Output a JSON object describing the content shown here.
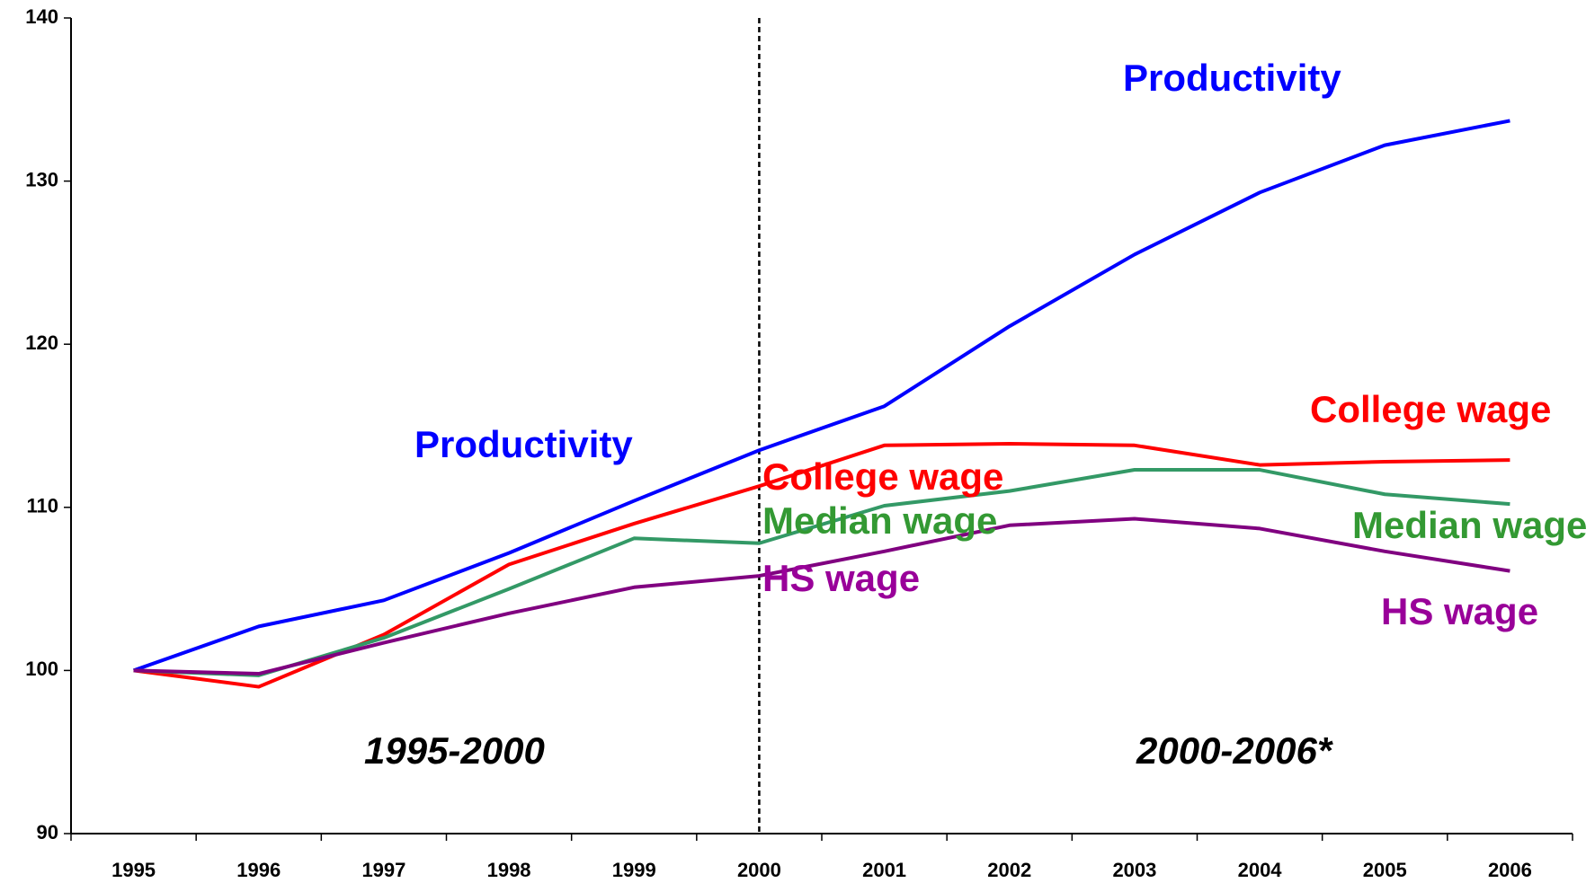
{
  "chart_data": {
    "type": "line",
    "categories": [
      "1995",
      "1996",
      "1997",
      "1998",
      "1999",
      "2000",
      "2001",
      "2002",
      "2003",
      "2004",
      "2005",
      "2006"
    ],
    "series": [
      {
        "name": "Productivity",
        "color": "#0000ff",
        "values": [
          100,
          102.7,
          104.3,
          107.2,
          110.4,
          113.5,
          116.2,
          121.1,
          125.5,
          129.3,
          132.2,
          133.7
        ]
      },
      {
        "name": "College wage",
        "color": "#ff0000",
        "values": [
          100,
          99.0,
          102.2,
          106.5,
          109.0,
          111.3,
          113.8,
          113.9,
          113.8,
          112.6,
          112.8,
          112.9
        ]
      },
      {
        "name": "Median wage",
        "color": "#339966",
        "values": [
          100,
          99.7,
          102.0,
          105.0,
          108.1,
          107.8,
          110.1,
          111.0,
          112.3,
          112.3,
          110.8,
          110.2
        ]
      },
      {
        "name": "HS wage",
        "color": "#800080",
        "values": [
          100,
          99.8,
          101.7,
          103.5,
          105.1,
          105.8,
          107.3,
          108.9,
          109.3,
          108.7,
          107.3,
          106.1
        ]
      }
    ],
    "annotations": [
      {
        "text": "Productivity",
        "color": "#0000ff"
      },
      {
        "text": "Productivity",
        "color": "#0000ff"
      },
      {
        "text": "College wage",
        "color": "#ff0000"
      },
      {
        "text": "College wage",
        "color": "#ff0000"
      },
      {
        "text": "Median wage",
        "color": "#339933"
      },
      {
        "text": "Median wage",
        "color": "#339933"
      },
      {
        "text": "HS wage",
        "color": "#990099"
      },
      {
        "text": "HS wage",
        "color": "#990099"
      },
      {
        "text": "1995-2000",
        "color": "#000000"
      },
      {
        "text": "2000-2006*",
        "color": "#000000"
      }
    ],
    "ylim": [
      90,
      140
    ],
    "yticks": [
      90,
      100,
      110,
      120,
      130,
      140
    ],
    "grid": false
  }
}
